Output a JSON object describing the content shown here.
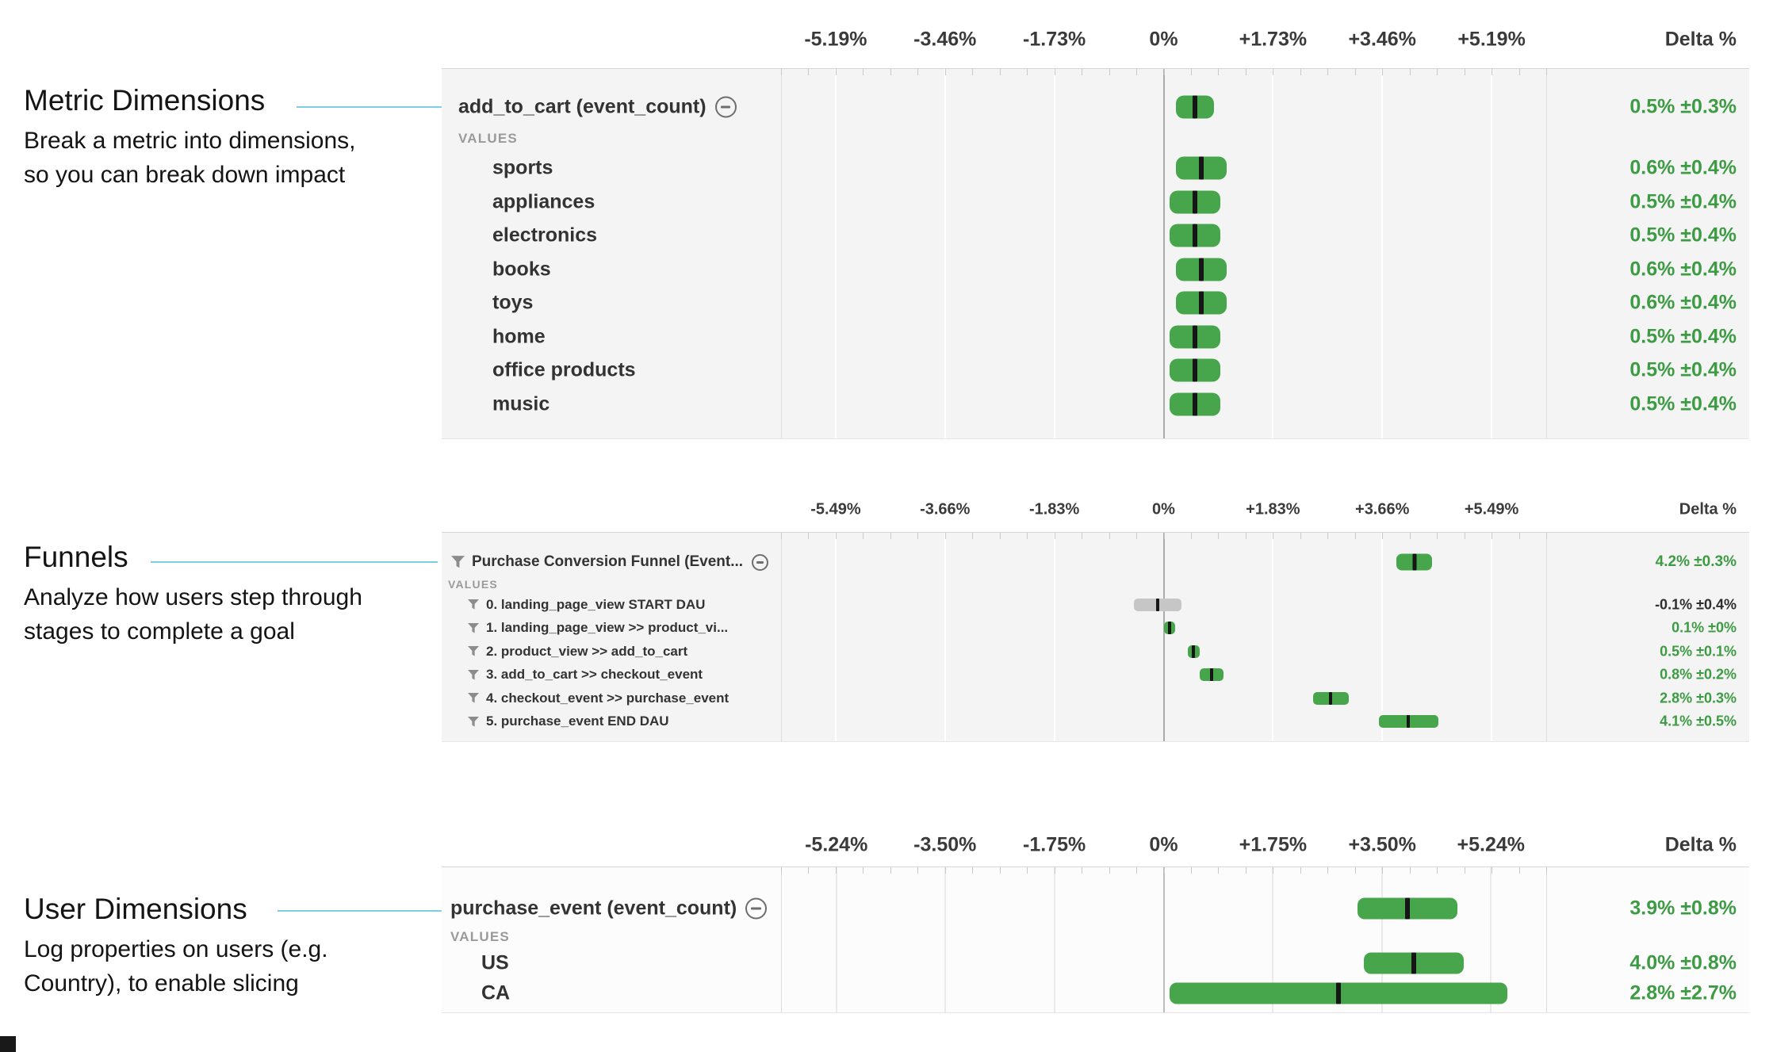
{
  "colors": {
    "bar_green": "#47a64b",
    "bar_gray": "#c6c6c6",
    "text_green": "#3d9b44",
    "text_dark": "#2e2e2e",
    "connector_blue": "#7ccfe2",
    "panel_bg_gray": "#f4f4f4",
    "panel_bg_light": "#fcfcfc"
  },
  "icons": {
    "collapse": "minus-circle-icon",
    "funnel": "funnel-icon"
  },
  "annotations": [
    {
      "title": "Metric Dimensions",
      "body_lines": [
        "Break a metric into dimensions,",
        "so you can break down impact"
      ]
    },
    {
      "title": "Funnels",
      "body_lines": [
        "Analyze how users step through",
        "stages to complete a goal"
      ]
    },
    {
      "title": "User Dimensions",
      "body_lines": [
        "Log properties on users (e.g.",
        "Country), to enable slicing"
      ]
    }
  ],
  "chart_data": [
    {
      "type": "forest-ci",
      "title": "add_to_cart metric broken down by dimension",
      "axis": {
        "ticks": [
          "-5.19%",
          "-3.46%",
          "-1.73%",
          "0%",
          "+1.73%",
          "+3.46%",
          "+5.19%"
        ],
        "tick_values": [
          -5.19,
          -3.46,
          -1.73,
          0,
          1.73,
          3.46,
          5.19
        ],
        "interval": 1.73,
        "delta_header": "Delta %"
      },
      "values_label": "VALUES",
      "title_row": {
        "label": "add_to_cart (event_count)",
        "value": 0.5,
        "ci": 0.3,
        "delta": "0.5% ±0.3%",
        "color": "green"
      },
      "rows": [
        {
          "label": "sports",
          "value": 0.6,
          "ci": 0.4,
          "delta": "0.6% ±0.4%",
          "color": "green"
        },
        {
          "label": "appliances",
          "value": 0.5,
          "ci": 0.4,
          "delta": "0.5% ±0.4%",
          "color": "green"
        },
        {
          "label": "electronics",
          "value": 0.5,
          "ci": 0.4,
          "delta": "0.5% ±0.4%",
          "color": "green"
        },
        {
          "label": "books",
          "value": 0.6,
          "ci": 0.4,
          "delta": "0.6% ±0.4%",
          "color": "green"
        },
        {
          "label": "toys",
          "value": 0.6,
          "ci": 0.4,
          "delta": "0.6% ±0.4%",
          "color": "green"
        },
        {
          "label": "home",
          "value": 0.5,
          "ci": 0.4,
          "delta": "0.5% ±0.4%",
          "color": "green"
        },
        {
          "label": "office products",
          "value": 0.5,
          "ci": 0.4,
          "delta": "0.5% ±0.4%",
          "color": "green"
        },
        {
          "label": "music",
          "value": 0.5,
          "ci": 0.4,
          "delta": "0.5% ±0.4%",
          "color": "green"
        }
      ]
    },
    {
      "type": "forest-ci",
      "title": "Purchase conversion funnel stages",
      "axis": {
        "ticks": [
          "-5.49%",
          "-3.66%",
          "-1.83%",
          "0%",
          "+1.83%",
          "+3.66%",
          "+5.49%"
        ],
        "tick_values": [
          -5.49,
          -3.66,
          -1.83,
          0,
          1.83,
          3.66,
          5.49
        ],
        "interval": 1.83,
        "delta_header": "Delta %"
      },
      "values_label": "VALUES",
      "title_row": {
        "label": "Purchase Conversion Funnel (Event...",
        "value": 4.2,
        "ci": 0.3,
        "delta": "4.2% ±0.3%",
        "color": "green"
      },
      "rows": [
        {
          "label": "0. landing_page_view START DAU",
          "value": -0.1,
          "ci": 0.4,
          "delta": "-0.1% ±0.4%",
          "color": "gray"
        },
        {
          "label": "1. landing_page_view >> product_vi...",
          "value": 0.1,
          "ci": 0.0,
          "delta": "0.1% ±0%",
          "color": "green"
        },
        {
          "label": "2. product_view >> add_to_cart",
          "value": 0.5,
          "ci": 0.1,
          "delta": "0.5% ±0.1%",
          "color": "green"
        },
        {
          "label": "3. add_to_cart >> checkout_event",
          "value": 0.8,
          "ci": 0.2,
          "delta": "0.8% ±0.2%",
          "color": "green"
        },
        {
          "label": "4. checkout_event >> purchase_event",
          "value": 2.8,
          "ci": 0.3,
          "delta": "2.8% ±0.3%",
          "color": "green"
        },
        {
          "label": "5. purchase_event END DAU",
          "value": 4.1,
          "ci": 0.5,
          "delta": "4.1% ±0.5%",
          "color": "green"
        }
      ]
    },
    {
      "type": "forest-ci",
      "title": "purchase_event metric sliced by user country",
      "axis": {
        "ticks": [
          "-5.24%",
          "-3.50%",
          "-1.75%",
          "0%",
          "+1.75%",
          "+3.50%",
          "+5.24%"
        ],
        "tick_values": [
          -5.24,
          -3.5,
          -1.75,
          0,
          1.75,
          3.5,
          5.24
        ],
        "interval": 1.75,
        "delta_header": "Delta %"
      },
      "values_label": "VALUES",
      "title_row": {
        "label": "purchase_event (event_count)",
        "value": 3.9,
        "ci": 0.8,
        "delta": "3.9% ±0.8%",
        "color": "green"
      },
      "rows": [
        {
          "label": "US",
          "value": 4.0,
          "ci": 0.8,
          "delta": "4.0% ±0.8%",
          "color": "green"
        },
        {
          "label": "CA",
          "value": 2.8,
          "ci": 2.7,
          "delta": "2.8% ±2.7%",
          "color": "green"
        }
      ]
    }
  ]
}
